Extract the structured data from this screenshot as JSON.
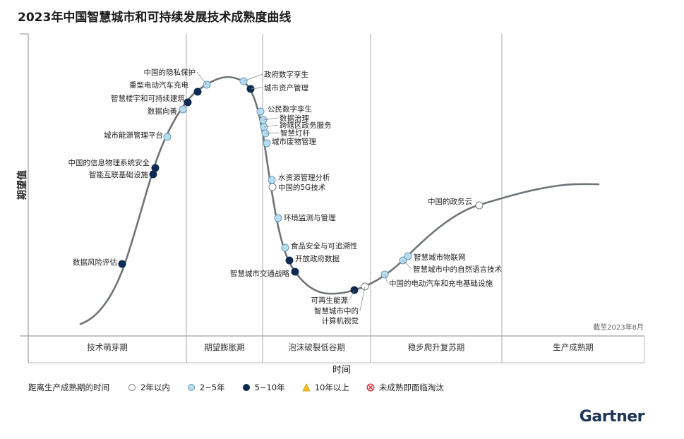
{
  "title": "2023年中国智慧城市和可持续发展技术成熟度曲线",
  "logo": "Gartner",
  "chart_data": {
    "type": "hype-cycle",
    "ylabel": "期望值",
    "xlabel": "时间",
    "note": "截至2023年8月",
    "phases": [
      "技术萌芽期",
      "期望膨胀期",
      "泡沫破裂低谷期",
      "稳步爬升复苏期",
      "生产成熟期"
    ],
    "legend": {
      "title": "距离生产成熟期的时间",
      "items": [
        {
          "key": "lt2",
          "label": "2年以内",
          "color": "#ffffff",
          "shape": "circle"
        },
        {
          "key": "2to5",
          "label": "2~5年",
          "color": "#b9dcef",
          "shape": "circle"
        },
        {
          "key": "5to10",
          "label": "5~10年",
          "color": "#0d2a52",
          "shape": "circle"
        },
        {
          "key": "gt10",
          "label": "10年以上",
          "color": "#f1c21b",
          "shape": "triangle"
        },
        {
          "key": "obsolete",
          "label": "未成熟即面临淘汰",
          "color": "#d9282f",
          "shape": "cross"
        }
      ]
    },
    "technologies": [
      {
        "name": "数据风险评估",
        "category": "5to10"
      },
      {
        "name": "智能互联基础设施",
        "category": "5to10"
      },
      {
        "name": "中国的信息物理系统安全",
        "category": "5to10"
      },
      {
        "name": "城市能源管理平台",
        "category": "2to5"
      },
      {
        "name": "数据向善",
        "category": "2to5"
      },
      {
        "name": "智慧楼宇和可持续建筑",
        "category": "5to10"
      },
      {
        "name": "重型电动汽车充电",
        "category": "5to10"
      },
      {
        "name": "中国的隐私保护",
        "category": "2to5"
      },
      {
        "name": "政府数字孪生",
        "category": "2to5"
      },
      {
        "name": "城市资产管理",
        "category": "5to10"
      },
      {
        "name": "公民数字孪生",
        "category": "2to5"
      },
      {
        "name": "数据治理",
        "category": "2to5"
      },
      {
        "name": "跨辖区政务服务",
        "category": "2to5"
      },
      {
        "name": "智慧灯杆",
        "category": "2to5"
      },
      {
        "name": "城市废物管理",
        "category": "2to5"
      },
      {
        "name": "水资源管理分析",
        "category": "2to5"
      },
      {
        "name": "中国的5G技术",
        "category": "lt2"
      },
      {
        "name": "环境监测与管理",
        "category": "2to5"
      },
      {
        "name": "食品安全与可追溯性",
        "category": "2to5"
      },
      {
        "name": "开放政府数据",
        "category": "5to10"
      },
      {
        "name": "智慧城市交通战略",
        "category": "5to10"
      },
      {
        "name": "可再生能源",
        "category": "5to10"
      },
      {
        "name": "智慧城市中的计算机视觉",
        "category": "lt2"
      },
      {
        "name": "中国的电动汽车和充电基础设施",
        "category": "2to5"
      },
      {
        "name": "智慧城市中的自然语言技术",
        "category": "2to5"
      },
      {
        "name": "智慧城市物联网",
        "category": "2to5"
      },
      {
        "name": "中国的政务云",
        "category": "lt2"
      }
    ]
  }
}
